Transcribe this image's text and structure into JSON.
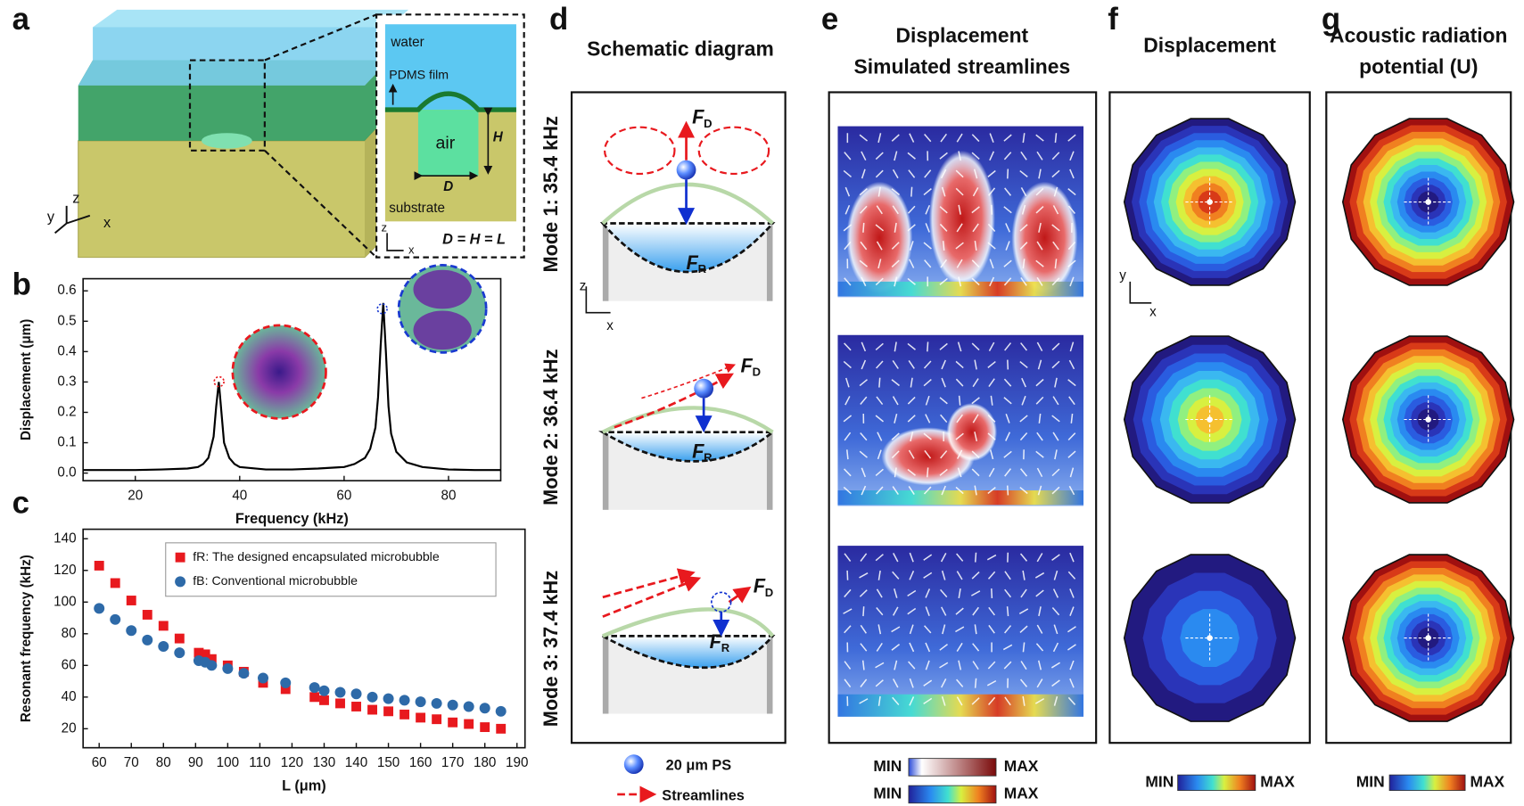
{
  "panel_labels": [
    "a",
    "b",
    "c",
    "d",
    "e",
    "f",
    "g"
  ],
  "panel_a": {
    "water": "water",
    "film": "PDMS film",
    "air": "air",
    "height": "H",
    "diameter": "D",
    "substrate": "substrate",
    "relation": "D = H = L",
    "inset_axes": [
      "z",
      "x"
    ],
    "axes": [
      "y",
      "z",
      "x"
    ]
  },
  "chart_data": [
    {
      "type": "line",
      "x": [
        10,
        15,
        20,
        25,
        30,
        32,
        33,
        34,
        35,
        35.5,
        36,
        36.5,
        37,
        38,
        39,
        40,
        45,
        50,
        55,
        60,
        62,
        64,
        65,
        66,
        66.5,
        67,
        67.5,
        68,
        68.5,
        69,
        70,
        72,
        75,
        80,
        85,
        90
      ],
      "values": [
        0.01,
        0.01,
        0.01,
        0.012,
        0.015,
        0.02,
        0.03,
        0.05,
        0.12,
        0.22,
        0.3,
        0.2,
        0.1,
        0.05,
        0.03,
        0.02,
        0.012,
        0.012,
        0.015,
        0.02,
        0.03,
        0.05,
        0.08,
        0.15,
        0.25,
        0.42,
        0.56,
        0.4,
        0.22,
        0.13,
        0.07,
        0.035,
        0.02,
        0.012,
        0.01,
        0.01
      ],
      "color": "#000000",
      "xlim": [
        10,
        90
      ],
      "xticks": [
        20,
        40,
        60,
        80
      ],
      "ylim": [
        -0.025,
        0.64
      ],
      "yticks": [
        {
          "value": 0,
          "label": "0.0"
        },
        0.1,
        0.2,
        0.3,
        0.4,
        0.5,
        0.6
      ],
      "x_label": "Frequency (kHz)",
      "y_label": "Displacement (μm)"
    },
    {
      "type": "scatter",
      "series": [
        {
          "name": "fR: The designed encapsulated microbubble",
          "color": "#e8191e",
          "marker": "square",
          "x": [
            60,
            65,
            70,
            75,
            80,
            85,
            91,
            93,
            95,
            100,
            105,
            111,
            118,
            127,
            130,
            135,
            140,
            145,
            150,
            155,
            160,
            165,
            170,
            175,
            180,
            185
          ],
          "values": [
            123,
            112,
            101,
            92,
            85,
            77,
            68,
            67,
            64,
            60,
            56,
            49,
            45,
            40,
            38,
            36,
            34,
            32,
            31,
            29,
            27,
            26,
            24,
            23,
            21,
            20
          ]
        },
        {
          "name": "fB: Conventional microbubble",
          "color": "#2e6aa8",
          "marker": "circle",
          "x": [
            60,
            65,
            70,
            75,
            80,
            85,
            91,
            93,
            95,
            100,
            105,
            111,
            118,
            127,
            130,
            135,
            140,
            145,
            150,
            155,
            160,
            165,
            170,
            175,
            180,
            185
          ],
          "values": [
            96,
            89,
            82,
            76,
            72,
            68,
            63,
            62,
            60,
            58,
            55,
            52,
            49,
            46,
            44,
            43,
            42,
            40,
            39,
            38,
            37,
            36,
            35,
            34,
            33,
            31
          ]
        }
      ],
      "xlim": [
        55,
        192.5
      ],
      "xticks": [
        60,
        70,
        80,
        90,
        100,
        110,
        120,
        130,
        140,
        150,
        160,
        170,
        180,
        190
      ],
      "ylim": [
        8,
        146
      ],
      "yticks": [
        20,
        40,
        60,
        80,
        100,
        120,
        140
      ],
      "x_label": "L (μm)",
      "y_label": "Resonant frequency (kHz)",
      "legend": "upper right"
    }
  ],
  "panel_d": {
    "title": "Schematic diagram",
    "modes": [
      "Mode 1: 35.4 kHz",
      "Mode 2: 36.4 kHz",
      "Mode 3: 37.4 kHz"
    ],
    "forces": [
      [
        {
          "symbol": "F",
          "subscript": "D"
        },
        {
          "symbol": "F",
          "subscript": "R"
        }
      ],
      [
        {
          "symbol": "F",
          "subscript": "D"
        },
        {
          "symbol": "F",
          "subscript": "R"
        }
      ],
      [
        {
          "symbol": "F",
          "subscript": "D"
        },
        {
          "symbol": "F",
          "subscript": "R"
        }
      ]
    ],
    "axes": [
      "z",
      "x"
    ],
    "legend": [
      "20 μm PS",
      "Streamlines"
    ]
  },
  "panel_e": {
    "title": [
      "Displacement",
      "Simulated streamlines"
    ],
    "colorbars": [
      [
        "MIN",
        "MAX"
      ],
      [
        "MIN",
        "MAX"
      ]
    ]
  },
  "panel_f": {
    "title": "Displacement",
    "axes": [
      "y",
      "x"
    ],
    "colorbar": [
      "MIN",
      "MAX"
    ]
  },
  "panel_g": {
    "title": [
      "Acoustic radiation",
      "potential (U)"
    ],
    "colorbar": [
      "MIN",
      "MAX"
    ]
  }
}
